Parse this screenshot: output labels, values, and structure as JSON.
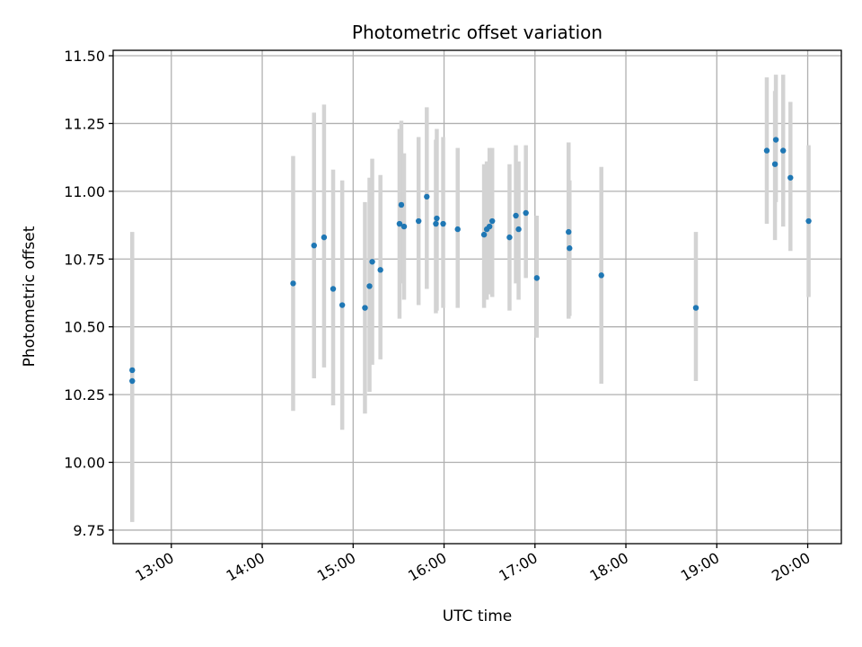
{
  "chart_data": {
    "type": "scatter",
    "title": "Photometric offset variation",
    "xlabel": "UTC time",
    "ylabel": "Photometric offset",
    "x_unit": "hours UTC",
    "xlim": [
      12.36,
      20.37
    ],
    "ylim": [
      9.7,
      11.52
    ],
    "xticks": [
      {
        "value": 13,
        "label": "13:00"
      },
      {
        "value": 14,
        "label": "14:00"
      },
      {
        "value": 15,
        "label": "15:00"
      },
      {
        "value": 16,
        "label": "16:00"
      },
      {
        "value": 17,
        "label": "17:00"
      },
      {
        "value": 18,
        "label": "18:00"
      },
      {
        "value": 19,
        "label": "19:00"
      },
      {
        "value": 20,
        "label": "20:00"
      }
    ],
    "yticks": [
      {
        "value": 9.75,
        "label": "9.75"
      },
      {
        "value": 10.0,
        "label": "10.00"
      },
      {
        "value": 10.25,
        "label": "10.25"
      },
      {
        "value": 10.5,
        "label": "10.50"
      },
      {
        "value": 10.75,
        "label": "10.75"
      },
      {
        "value": 11.0,
        "label": "11.00"
      },
      {
        "value": 11.25,
        "label": "11.25"
      },
      {
        "value": 11.5,
        "label": "11.50"
      }
    ],
    "grid": true,
    "marker_color": "#1f77b4",
    "errorbar_color": "#d3d3d3",
    "points": [
      {
        "x": 12.57,
        "y": 10.34,
        "lo": 9.78,
        "hi": 10.83
      },
      {
        "x": 12.57,
        "y": 10.3,
        "lo": 9.79,
        "hi": 10.85
      },
      {
        "x": 14.34,
        "y": 10.66,
        "lo": 10.19,
        "hi": 11.13
      },
      {
        "x": 14.57,
        "y": 10.8,
        "lo": 10.31,
        "hi": 11.29
      },
      {
        "x": 14.68,
        "y": 10.83,
        "lo": 10.35,
        "hi": 11.32
      },
      {
        "x": 14.78,
        "y": 10.64,
        "lo": 10.21,
        "hi": 11.08
      },
      {
        "x": 14.88,
        "y": 10.58,
        "lo": 10.12,
        "hi": 11.04
      },
      {
        "x": 15.13,
        "y": 10.57,
        "lo": 10.18,
        "hi": 10.96
      },
      {
        "x": 15.18,
        "y": 10.65,
        "lo": 10.26,
        "hi": 11.05
      },
      {
        "x": 15.21,
        "y": 10.74,
        "lo": 10.36,
        "hi": 11.12
      },
      {
        "x": 15.3,
        "y": 10.71,
        "lo": 10.38,
        "hi": 11.06
      },
      {
        "x": 15.51,
        "y": 10.88,
        "lo": 10.53,
        "hi": 11.23
      },
      {
        "x": 15.53,
        "y": 10.95,
        "lo": 10.66,
        "hi": 11.26
      },
      {
        "x": 15.56,
        "y": 10.87,
        "lo": 10.6,
        "hi": 11.14
      },
      {
        "x": 15.72,
        "y": 10.89,
        "lo": 10.58,
        "hi": 11.2
      },
      {
        "x": 15.81,
        "y": 10.98,
        "lo": 10.64,
        "hi": 11.31
      },
      {
        "x": 15.92,
        "y": 10.9,
        "lo": 10.56,
        "hi": 11.23
      },
      {
        "x": 15.91,
        "y": 10.88,
        "lo": 10.55,
        "hi": 11.19
      },
      {
        "x": 15.99,
        "y": 10.88,
        "lo": 10.57,
        "hi": 11.2
      },
      {
        "x": 16.15,
        "y": 10.86,
        "lo": 10.57,
        "hi": 11.16
      },
      {
        "x": 16.44,
        "y": 10.84,
        "lo": 10.57,
        "hi": 11.1
      },
      {
        "x": 16.47,
        "y": 10.86,
        "lo": 10.6,
        "hi": 11.11
      },
      {
        "x": 16.5,
        "y": 10.87,
        "lo": 10.62,
        "hi": 11.16
      },
      {
        "x": 16.53,
        "y": 10.89,
        "lo": 10.61,
        "hi": 11.16
      },
      {
        "x": 16.72,
        "y": 10.83,
        "lo": 10.56,
        "hi": 11.1
      },
      {
        "x": 16.79,
        "y": 10.91,
        "lo": 10.66,
        "hi": 11.17
      },
      {
        "x": 16.82,
        "y": 10.86,
        "lo": 10.6,
        "hi": 11.11
      },
      {
        "x": 16.9,
        "y": 10.92,
        "lo": 10.68,
        "hi": 11.17
      },
      {
        "x": 17.02,
        "y": 10.68,
        "lo": 10.46,
        "hi": 10.91
      },
      {
        "x": 17.37,
        "y": 10.85,
        "lo": 10.53,
        "hi": 11.18
      },
      {
        "x": 17.38,
        "y": 10.79,
        "lo": 10.54,
        "hi": 11.04
      },
      {
        "x": 17.73,
        "y": 10.69,
        "lo": 10.29,
        "hi": 11.09
      },
      {
        "x": 18.77,
        "y": 10.57,
        "lo": 10.3,
        "hi": 10.85
      },
      {
        "x": 19.55,
        "y": 11.15,
        "lo": 10.88,
        "hi": 11.42
      },
      {
        "x": 19.64,
        "y": 11.1,
        "lo": 10.82,
        "hi": 11.37
      },
      {
        "x": 19.65,
        "y": 11.19,
        "lo": 10.96,
        "hi": 11.43
      },
      {
        "x": 19.73,
        "y": 11.15,
        "lo": 10.87,
        "hi": 11.43
      },
      {
        "x": 19.81,
        "y": 11.05,
        "lo": 10.78,
        "hi": 11.33
      },
      {
        "x": 20.01,
        "y": 10.89,
        "lo": 10.61,
        "hi": 11.17
      }
    ]
  }
}
